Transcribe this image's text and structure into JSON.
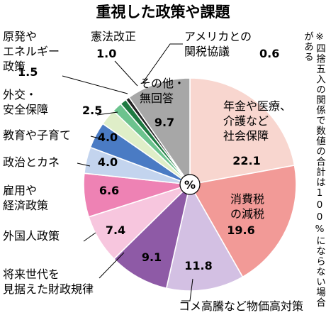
{
  "chart_data": {
    "type": "pie",
    "title": "重視した政策や課題",
    "center_label": "%",
    "note": "※四捨五入の関係で数値の合計は100%にならない場合がある",
    "colors": {
      "outline": "#ffffff",
      "leader": "#000000",
      "center_fill": "#ffffff",
      "center_stroke": "#000000"
    },
    "slices": [
      {
        "label": "年金や医療、介護など社会保障",
        "lines": [
          "年金や医療、",
          "介護など",
          "社会保障"
        ],
        "value": 22.1,
        "color": "#f8d6cf",
        "label_mode": "inside"
      },
      {
        "label": "消費税の減税",
        "lines": [
          "消費税",
          "の減税"
        ],
        "value": 19.6,
        "color": "#f29a97",
        "label_mode": "inside"
      },
      {
        "label": "コメ高騰など物価高対策",
        "lines": [
          "コメ高騰など物価高対策"
        ],
        "value": 11.8,
        "color": "#d3c0e3",
        "label_mode": "outside"
      },
      {
        "label": "将来世代を見据えた財政規律",
        "lines": [
          "将来世代を",
          "見据えた財政規律"
        ],
        "value": 9.1,
        "color": "#8e5aa6",
        "label_mode": "outside"
      },
      {
        "label": "外国人政策",
        "lines": [
          "外国人政策"
        ],
        "value": 7.4,
        "color": "#f7c6de",
        "label_mode": "outside"
      },
      {
        "label": "雇用や経済政策",
        "lines": [
          "雇用や",
          "経済政策"
        ],
        "value": 6.6,
        "color": "#ee82b4",
        "label_mode": "outside"
      },
      {
        "label": "政治とカネ",
        "lines": [
          "政治とカネ"
        ],
        "value": 4.0,
        "color": "#c3d4ee",
        "label_mode": "outside"
      },
      {
        "label": "教育や子育て",
        "lines": [
          "教育や子育て"
        ],
        "value": 4.0,
        "color": "#4a7bc4",
        "label_mode": "outside"
      },
      {
        "label": "外交・安全保障",
        "lines": [
          "外交・",
          "安全保障"
        ],
        "value": 2.5,
        "color": "#dfeec8",
        "label_mode": "outside"
      },
      {
        "label": "原発やエネルギー政策",
        "lines": [
          "原発や",
          "エネルギー",
          "政策"
        ],
        "value": 1.5,
        "color": "#6cc38e",
        "label_mode": "outside"
      },
      {
        "label": "憲法改正",
        "lines": [
          "憲法改正"
        ],
        "value": 1.0,
        "color": "#1f7a42",
        "label_mode": "outside"
      },
      {
        "label": "アメリカとの関税協議",
        "lines": [
          "アメリカとの",
          "関税協議"
        ],
        "value": 0.6,
        "color": "#222222",
        "label_mode": "outside"
      },
      {
        "label": "その他・無回答",
        "lines": [
          "その他・",
          "無回答"
        ],
        "value": 9.7,
        "color": "#a7a7a7",
        "label_mode": "inside"
      }
    ]
  }
}
